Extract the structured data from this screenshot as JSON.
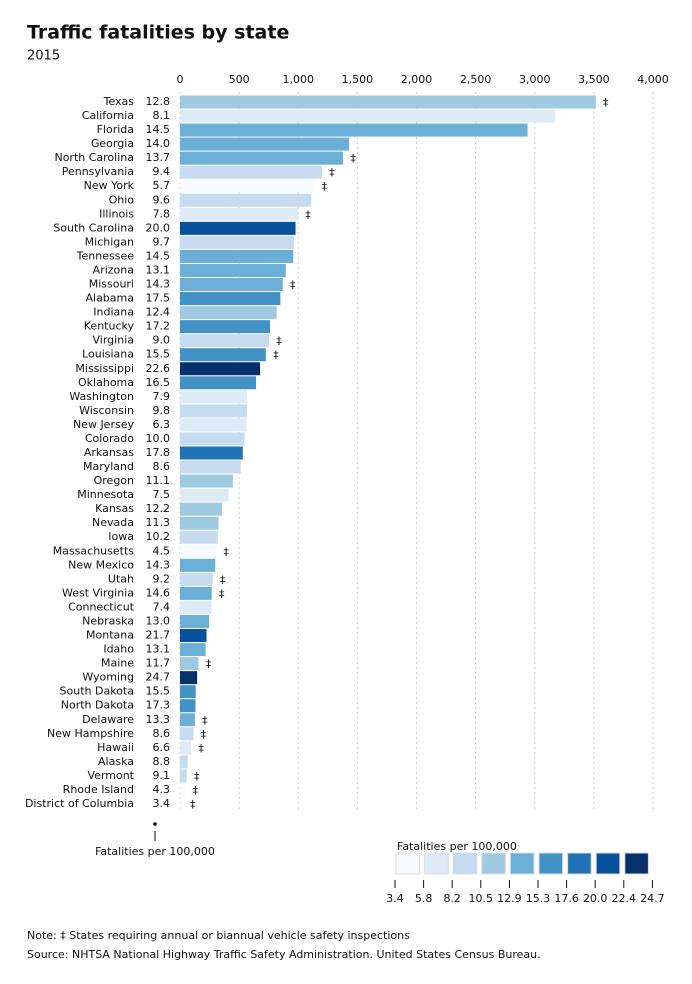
{
  "chart_data": {
    "type": "bar",
    "title": "Traffic fatalities by state",
    "subtitle": "2015",
    "categories": [
      "Texas",
      "California",
      "Florida",
      "Georgia",
      "North Carolina",
      "Pennsylvania",
      "New York",
      "Ohio",
      "Illinois",
      "South Carolina",
      "Michigan",
      "Tennessee",
      "Arizona",
      "Missouri",
      "Alabama",
      "Indiana",
      "Kentucky",
      "Virginia",
      "Louisiana",
      "Mississippi",
      "Oklahoma",
      "Washington",
      "Wisconsin",
      "New Jersey",
      "Colorado",
      "Arkansas",
      "Maryland",
      "Oregon",
      "Minnesota",
      "Kansas",
      "Nevada",
      "Iowa",
      "Massachusetts",
      "New Mexico",
      "Utah",
      "West Virginia",
      "Connecticut",
      "Nebraska",
      "Montana",
      "Idaho",
      "Maine",
      "Wyoming",
      "South Dakota",
      "North Dakota",
      "Delaware",
      "New Hampshire",
      "Hawaii",
      "Alaska",
      "Vermont",
      "Rhode Island",
      "District of Columbia"
    ],
    "values": [
      3516,
      3176,
      2939,
      1430,
      1379,
      1200,
      1136,
      1110,
      998,
      977,
      963,
      958,
      895,
      869,
      849,
      817,
      761,
      753,
      726,
      677,
      643,
      568,
      566,
      562,
      546,
      531,
      513,
      447,
      411,
      355,
      326,
      320,
      306,
      298,
      276,
      268,
      266,
      246,
      224,
      216,
      156,
      145,
      133,
      131,
      126,
      114,
      94,
      65,
      57,
      45,
      23
    ],
    "rates": [
      12.8,
      8.1,
      14.5,
      14.0,
      13.7,
      9.4,
      5.7,
      9.6,
      7.8,
      20.0,
      9.7,
      14.5,
      13.1,
      14.3,
      17.5,
      12.4,
      17.2,
      9.0,
      15.5,
      22.6,
      16.5,
      7.9,
      9.8,
      6.3,
      10.0,
      17.8,
      8.6,
      11.1,
      7.5,
      12.2,
      11.3,
      10.2,
      4.5,
      14.3,
      9.2,
      14.6,
      7.4,
      13.0,
      21.7,
      13.1,
      11.7,
      24.7,
      15.5,
      17.3,
      13.3,
      8.6,
      6.6,
      8.8,
      9.1,
      4.3,
      3.4
    ],
    "rate_labels": [
      "12.8",
      "8.1",
      "14.5",
      "14.0",
      "13.7",
      "9.4",
      "5.7",
      "9.6",
      "7.8",
      "20.0",
      "9.7",
      "14.5",
      "13.1",
      "14.3",
      "17.5",
      "12.4",
      "17.2",
      "9.0",
      "15.5",
      "22.6",
      "16.5",
      "7.9",
      "9.8",
      "6.3",
      "10.0",
      "17.8",
      "8.6",
      "11.1",
      "7.5",
      "12.2",
      "11.3",
      "10.2",
      "4.5",
      "14.3",
      "9.2",
      "14.6",
      "7.4",
      "13.0",
      "21.7",
      "13.1",
      "11.7",
      "24.7",
      "15.5",
      "17.3",
      "13.3",
      "8.6",
      "6.6",
      "8.8",
      "9.1",
      "4.3",
      "3.4"
    ],
    "inspection": [
      true,
      false,
      false,
      false,
      true,
      true,
      true,
      false,
      true,
      false,
      false,
      false,
      false,
      true,
      false,
      false,
      false,
      true,
      true,
      false,
      false,
      false,
      false,
      false,
      false,
      false,
      false,
      false,
      false,
      false,
      false,
      false,
      true,
      false,
      true,
      true,
      false,
      false,
      false,
      false,
      true,
      false,
      false,
      false,
      true,
      true,
      true,
      false,
      true,
      true,
      true
    ],
    "inspection_mark": "‡",
    "xlim": [
      0,
      4000
    ],
    "xticks": [
      0,
      500,
      {
        "value": 1000,
        "label": "1,000"
      },
      {
        "value": 1500,
        "label": "1,500"
      },
      {
        "value": 2000,
        "label": "2,000"
      },
      {
        "value": 2500,
        "label": "2,500"
      },
      {
        "value": 3000,
        "label": "3,000"
      },
      {
        "value": 3500,
        "label": "3,500"
      },
      {
        "value": 4000,
        "label": "4,000"
      }
    ],
    "grid": true,
    "size_legend_label": "Fatalities per 100,000",
    "legend": {
      "title": "Fatalities per 100,000",
      "bins": [
        3.4,
        5.8,
        8.2,
        10.5,
        12.9,
        15.3,
        17.6,
        {
          "value": 20,
          "label": "20.0"
        },
        22.4,
        24.7
      ],
      "colors": [
        "#f7fbff",
        "#deebf7",
        "#c6dbef",
        "#9ecae1",
        "#6baed6",
        "#4292c6",
        "#2171b5",
        "#08519c",
        "#08306b"
      ]
    },
    "note": "Note: ‡ States requiring annual or biannual vehicle safety inspections",
    "source": "Source: NHTSA National Highway Traffic Safety Administration. United States Census Bureau."
  }
}
